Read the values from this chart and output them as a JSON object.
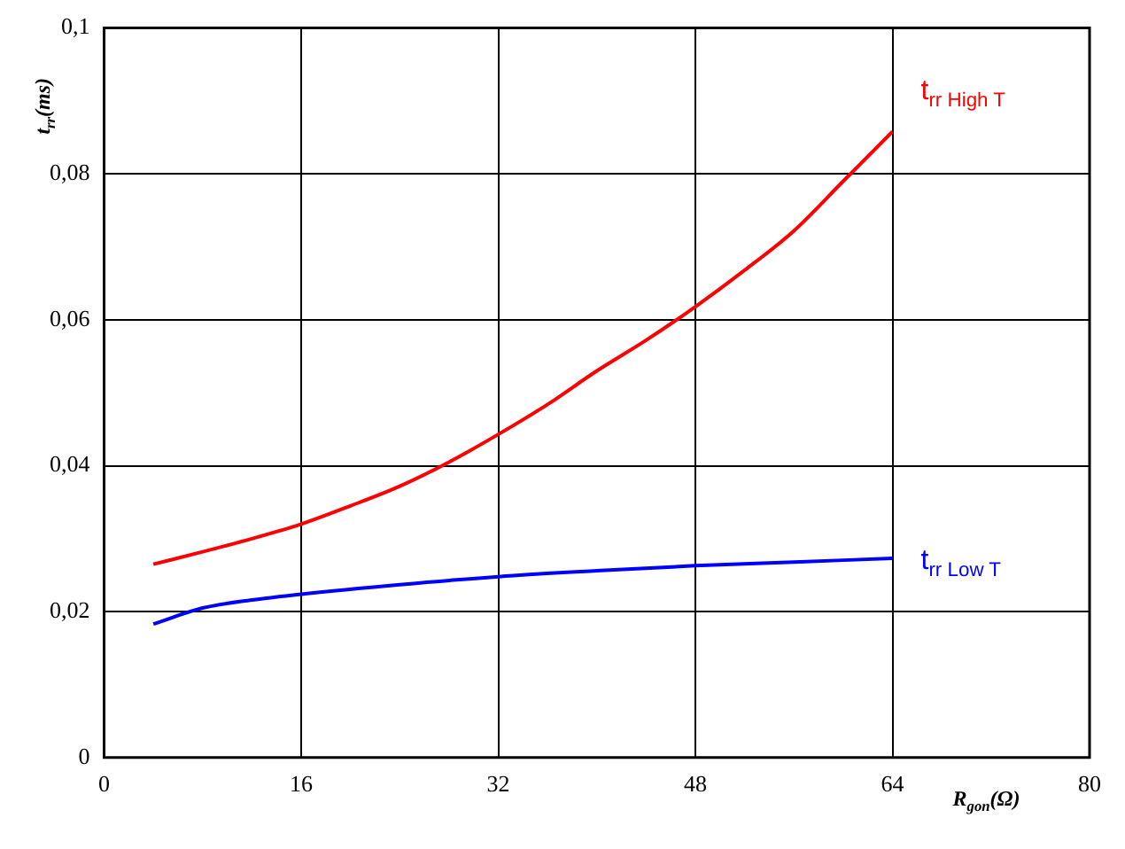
{
  "chart_data": {
    "type": "line",
    "xlabel": "R$_{gon}$(Ω)",
    "ylabel": "t$_{rr}$(ms)",
    "xlim": [
      0,
      80
    ],
    "xticks": [
      0,
      16,
      32,
      48,
      64,
      80
    ],
    "ylim": [
      0,
      0.1
    ],
    "yticks": [
      {
        "value": 0,
        "label": "0"
      },
      {
        "value": 0.02,
        "label": "0,02"
      },
      {
        "value": 0.04,
        "label": "0,04"
      },
      {
        "value": 0.06,
        "label": "0,06"
      },
      {
        "value": 0.08,
        "label": "0,08"
      },
      {
        "value": 0.1,
        "label": "0,1"
      }
    ],
    "grid": true,
    "legend": false,
    "marker": "none",
    "line_style": "solid",
    "series": [
      {
        "name": "t$_{rr High T}$",
        "color": "#ff0000",
        "x": [
          4,
          8,
          12,
          16,
          20,
          24,
          28,
          32,
          36,
          40,
          44,
          48,
          52,
          56,
          60,
          64
        ],
        "values": [
          0.0265,
          0.0282,
          0.03,
          0.032,
          0.0345,
          0.0372,
          0.0405,
          0.0443,
          0.0484,
          0.053,
          0.0572,
          0.0618,
          0.0668,
          0.0722,
          0.079,
          0.0858
        ]
      },
      {
        "name": "t$_{rr Low T}$",
        "color": "#0000ff",
        "x": [
          4,
          8,
          12,
          16,
          24,
          32,
          40,
          48,
          56,
          64
        ],
        "values": [
          0.0183,
          0.0205,
          0.0216,
          0.0224,
          0.0237,
          0.0248,
          0.0256,
          0.0263,
          0.0268,
          0.0273
        ]
      }
    ]
  }
}
